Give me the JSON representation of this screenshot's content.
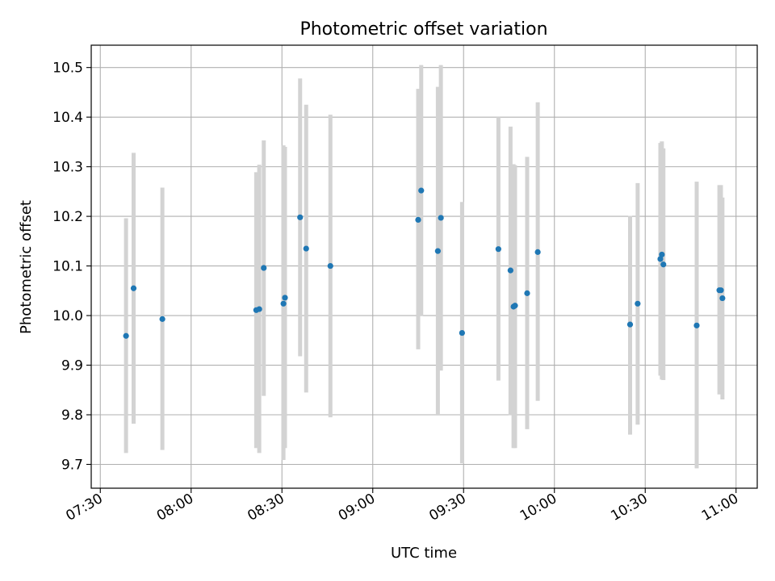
{
  "chart_data": {
    "type": "scatter",
    "title": "Photometric offset variation",
    "xlabel": "UTC time",
    "ylabel": "Photometric offset",
    "xlim": [
      "07:27",
      "11:07"
    ],
    "ylim": [
      9.652,
      10.545
    ],
    "x_ticks": [
      "07:30",
      "08:00",
      "08:30",
      "09:00",
      "09:30",
      "10:00",
      "10:30",
      "11:00"
    ],
    "y_ticks": [
      "9.7",
      "9.8",
      "9.9",
      "10.0",
      "10.1",
      "10.2",
      "10.3",
      "10.4",
      "10.5"
    ],
    "grid": true,
    "legend": "none",
    "colors": {
      "marker": "#1f77b4",
      "errorbar": "#d3d3d3",
      "grid": "#b0b0b0"
    },
    "points": [
      {
        "t": "07:38:30",
        "y": 9.959,
        "ylo": 9.723,
        "yhi": 10.196
      },
      {
        "t": "07:41:00",
        "y": 10.055,
        "ylo": 9.782,
        "yhi": 10.328
      },
      {
        "t": "07:50:30",
        "y": 9.993,
        "ylo": 9.729,
        "yhi": 10.258
      },
      {
        "t": "08:21:30",
        "y": 10.011,
        "ylo": 9.733,
        "yhi": 10.289
      },
      {
        "t": "08:22:30",
        "y": 10.013,
        "ylo": 9.723,
        "yhi": 10.304
      },
      {
        "t": "08:24:00",
        "y": 10.096,
        "ylo": 9.838,
        "yhi": 10.353
      },
      {
        "t": "08:30:30",
        "y": 10.024,
        "ylo": 9.709,
        "yhi": 10.343
      },
      {
        "t": "08:31:00",
        "y": 10.036,
        "ylo": 9.733,
        "yhi": 10.34
      },
      {
        "t": "08:36:00",
        "y": 10.198,
        "ylo": 9.918,
        "yhi": 10.478
      },
      {
        "t": "08:38:00",
        "y": 10.135,
        "ylo": 9.845,
        "yhi": 10.425
      },
      {
        "t": "08:46:00",
        "y": 10.1,
        "ylo": 9.795,
        "yhi": 10.405
      },
      {
        "t": "09:15:00",
        "y": 10.193,
        "ylo": 9.932,
        "yhi": 10.457
      },
      {
        "t": "09:16:00",
        "y": 10.252,
        "ylo": 9.999,
        "yhi": 10.505
      },
      {
        "t": "09:21:30",
        "y": 10.13,
        "ylo": 9.8,
        "yhi": 10.461
      },
      {
        "t": "09:22:30",
        "y": 10.197,
        "ylo": 9.889,
        "yhi": 10.505
      },
      {
        "t": "09:29:30",
        "y": 9.965,
        "ylo": 9.702,
        "yhi": 10.229
      },
      {
        "t": "09:41:30",
        "y": 10.134,
        "ylo": 9.869,
        "yhi": 10.4
      },
      {
        "t": "09:45:30",
        "y": 10.091,
        "ylo": 9.799,
        "yhi": 10.381
      },
      {
        "t": "09:46:30",
        "y": 10.018,
        "ylo": 9.733,
        "yhi": 10.305
      },
      {
        "t": "09:47:00",
        "y": 10.02,
        "ylo": 9.733,
        "yhi": 10.303
      },
      {
        "t": "09:51:00",
        "y": 10.045,
        "ylo": 9.771,
        "yhi": 10.32
      },
      {
        "t": "09:54:30",
        "y": 10.128,
        "ylo": 9.828,
        "yhi": 10.43
      },
      {
        "t": "10:25:00",
        "y": 9.982,
        "ylo": 9.76,
        "yhi": 10.201
      },
      {
        "t": "10:27:30",
        "y": 10.024,
        "ylo": 9.78,
        "yhi": 10.267
      },
      {
        "t": "10:35:00",
        "y": 10.114,
        "ylo": 9.879,
        "yhi": 10.348
      },
      {
        "t": "10:35:30",
        "y": 10.123,
        "ylo": 9.871,
        "yhi": 10.351
      },
      {
        "t": "10:36:00",
        "y": 10.103,
        "ylo": 9.87,
        "yhi": 10.337
      },
      {
        "t": "10:47:00",
        "y": 9.98,
        "ylo": 9.692,
        "yhi": 10.27
      },
      {
        "t": "10:54:30",
        "y": 10.051,
        "ylo": 9.841,
        "yhi": 10.263
      },
      {
        "t": "10:55:00",
        "y": 10.051,
        "ylo": 9.862,
        "yhi": 10.263
      },
      {
        "t": "10:55:30",
        "y": 10.035,
        "ylo": 9.831,
        "yhi": 10.238
      }
    ]
  }
}
